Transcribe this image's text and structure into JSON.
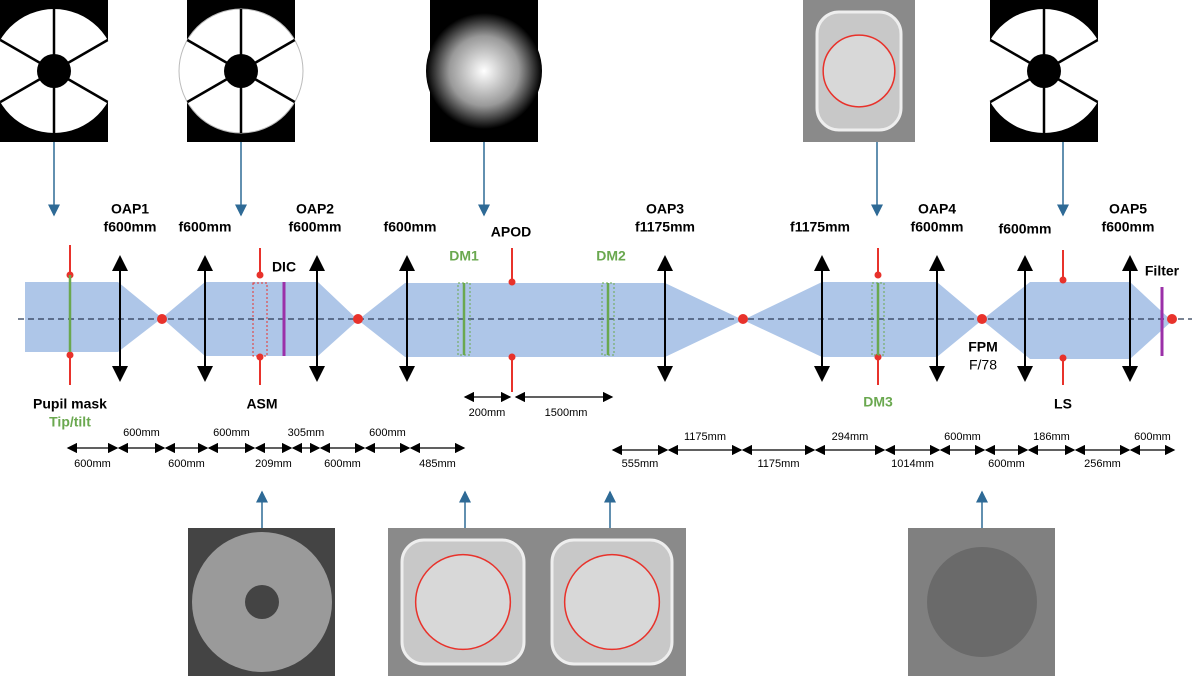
{
  "lenses": [
    {
      "name": "OAP1",
      "focal": "f600mm"
    },
    {
      "focal": "f600mm"
    },
    {
      "name": "OAP2",
      "focal": "f600mm"
    },
    {
      "focal": "f600mm"
    },
    {
      "name": "OAP3",
      "focal": "f1175mm"
    },
    {
      "focal": "f1175mm"
    },
    {
      "name": "OAP4",
      "focal": "f600mm"
    },
    {
      "focal": "f600mm"
    },
    {
      "name": "OAP5",
      "focal": "f600mm"
    }
  ],
  "planes": {
    "pupil_mask": "Pupil mask",
    "tip_tilt": "Tip/tilt",
    "dic": "DIC",
    "asm": "ASM",
    "apod": "APOD",
    "dm1": "DM1",
    "dm2": "DM2",
    "dm3": "DM3",
    "fpm": "FPM",
    "fpm_ratio": "F/78",
    "ls": "LS",
    "filter": "Filter"
  },
  "spacings": {
    "dm1_apod": "200mm",
    "apod_dm2": "1500mm"
  },
  "distances_left": [
    "600mm",
    "600mm",
    "600mm",
    "600mm",
    "209mm",
    "305mm",
    "600mm",
    "600mm",
    "485mm"
  ],
  "distances_right": [
    "555mm",
    "1175mm",
    "1175mm",
    "294mm",
    "1014mm",
    "600mm",
    "600mm",
    "186mm",
    "256mm",
    "600mm"
  ]
}
